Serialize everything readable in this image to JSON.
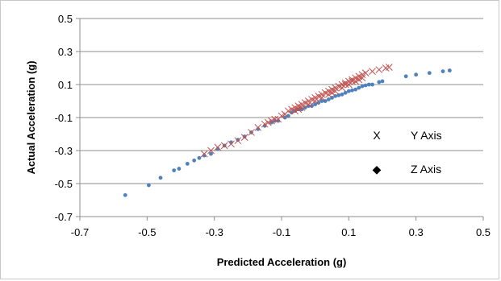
{
  "chart_data": {
    "type": "scatter",
    "title": "",
    "xlabel": "Predicted Acceleration (g)",
    "ylabel": "Actual Acceleration (g)",
    "xlim": [
      -0.7,
      0.5
    ],
    "ylim": [
      -0.7,
      0.5
    ],
    "x_ticks": [
      -0.7,
      -0.5,
      -0.3,
      -0.1,
      0.1,
      0.3,
      0.5
    ],
    "y_ticks": [
      -0.7,
      -0.5,
      -0.3,
      -0.1,
      0.1,
      0.3,
      0.5
    ],
    "x_tick_labels": [
      "-0.7",
      "-0.5",
      "-0.3",
      "-0.1",
      "0.1",
      "0.3",
      "0.5"
    ],
    "y_tick_labels": [
      "-0.7",
      "-0.5",
      "-0.3",
      "-0.1",
      "0.1",
      "0.3",
      "0.5"
    ],
    "grid": "horizontal",
    "legend_position": "right",
    "series": [
      {
        "name": "Y Axis",
        "legend_marker_text": "X",
        "marker": "x",
        "color": "#c0504d",
        "points": [
          [
            -0.33,
            -0.32
          ],
          [
            -0.31,
            -0.3
          ],
          [
            -0.29,
            -0.28
          ],
          [
            -0.27,
            -0.27
          ],
          [
            -0.25,
            -0.26
          ],
          [
            -0.23,
            -0.24
          ],
          [
            -0.21,
            -0.22
          ],
          [
            -0.19,
            -0.19
          ],
          [
            -0.17,
            -0.16
          ],
          [
            -0.15,
            -0.14
          ],
          [
            -0.13,
            -0.12
          ],
          [
            -0.11,
            -0.11
          ],
          [
            -0.1,
            -0.09
          ],
          [
            -0.09,
            -0.08
          ],
          [
            -0.08,
            -0.06
          ],
          [
            -0.07,
            -0.05
          ],
          [
            -0.06,
            -0.04
          ],
          [
            -0.05,
            -0.03
          ],
          [
            -0.04,
            -0.02
          ],
          [
            -0.03,
            -0.01
          ],
          [
            -0.02,
            0.0
          ],
          [
            -0.01,
            0.01
          ],
          [
            0.0,
            0.02
          ],
          [
            0.01,
            0.03
          ],
          [
            0.02,
            0.04
          ],
          [
            0.03,
            0.05
          ],
          [
            0.04,
            0.06
          ],
          [
            0.05,
            0.07
          ],
          [
            0.06,
            0.08
          ],
          [
            0.07,
            0.09
          ],
          [
            0.08,
            0.1
          ],
          [
            0.09,
            0.11
          ],
          [
            0.1,
            0.12
          ],
          [
            0.11,
            0.13
          ],
          [
            0.12,
            0.14
          ],
          [
            0.13,
            0.15
          ],
          [
            0.14,
            0.16
          ],
          [
            0.15,
            0.17
          ],
          [
            0.17,
            0.18
          ],
          [
            0.19,
            0.19
          ],
          [
            0.21,
            0.2
          ],
          [
            0.22,
            0.205
          ],
          [
            -0.06,
            -0.06
          ],
          [
            -0.04,
            -0.04
          ],
          [
            -0.02,
            -0.02
          ],
          [
            0.0,
            0.0
          ],
          [
            0.02,
            0.02
          ],
          [
            0.04,
            0.04
          ],
          [
            0.06,
            0.06
          ],
          [
            0.08,
            0.08
          ],
          [
            0.1,
            0.1
          ],
          [
            0.12,
            0.12
          ],
          [
            0.14,
            0.14
          ],
          [
            -0.14,
            -0.13
          ],
          [
            -0.12,
            -0.11
          ],
          [
            -0.05,
            -0.05
          ],
          [
            0.05,
            0.05
          ],
          [
            0.09,
            0.1
          ],
          [
            0.11,
            0.12
          ],
          [
            0.13,
            0.13
          ]
        ]
      },
      {
        "name": "Z Axis",
        "legend_marker_text": "◆",
        "marker": "circle",
        "color": "#4f81bd",
        "points": [
          [
            -0.565,
            -0.57
          ],
          [
            -0.495,
            -0.51
          ],
          [
            -0.46,
            -0.465
          ],
          [
            -0.42,
            -0.42
          ],
          [
            -0.405,
            -0.41
          ],
          [
            -0.38,
            -0.38
          ],
          [
            -0.36,
            -0.36
          ],
          [
            -0.345,
            -0.345
          ],
          [
            -0.33,
            -0.33
          ],
          [
            -0.31,
            -0.32
          ],
          [
            -0.29,
            -0.29
          ],
          [
            -0.27,
            -0.27
          ],
          [
            -0.25,
            -0.25
          ],
          [
            -0.23,
            -0.235
          ],
          [
            -0.21,
            -0.215
          ],
          [
            -0.19,
            -0.19
          ],
          [
            -0.17,
            -0.17
          ],
          [
            -0.15,
            -0.15
          ],
          [
            -0.13,
            -0.13
          ],
          [
            -0.11,
            -0.12
          ],
          [
            -0.09,
            -0.1
          ],
          [
            -0.07,
            -0.07
          ],
          [
            -0.05,
            -0.05
          ],
          [
            -0.03,
            -0.04
          ],
          [
            -0.01,
            -0.03
          ],
          [
            0.01,
            -0.01
          ],
          [
            0.03,
            0.0
          ],
          [
            0.05,
            0.02
          ],
          [
            0.07,
            0.035
          ],
          [
            0.09,
            0.05
          ],
          [
            0.11,
            0.065
          ],
          [
            0.13,
            0.08
          ],
          [
            0.15,
            0.095
          ],
          [
            0.17,
            0.1
          ],
          [
            0.19,
            0.115
          ],
          [
            0.2,
            0.12
          ],
          [
            0.27,
            0.15
          ],
          [
            0.3,
            0.16
          ],
          [
            0.34,
            0.17
          ],
          [
            0.38,
            0.18
          ],
          [
            0.4,
            0.185
          ],
          [
            -0.12,
            -0.12
          ],
          [
            -0.08,
            -0.09
          ],
          [
            -0.06,
            -0.06
          ],
          [
            -0.04,
            -0.05
          ],
          [
            -0.02,
            -0.03
          ],
          [
            0.0,
            -0.02
          ],
          [
            0.02,
            0.0
          ],
          [
            0.04,
            0.01
          ],
          [
            0.06,
            0.03
          ],
          [
            0.08,
            0.04
          ],
          [
            0.1,
            0.06
          ],
          [
            0.12,
            0.07
          ],
          [
            0.14,
            0.09
          ],
          [
            0.16,
            0.1
          ]
        ]
      }
    ]
  }
}
